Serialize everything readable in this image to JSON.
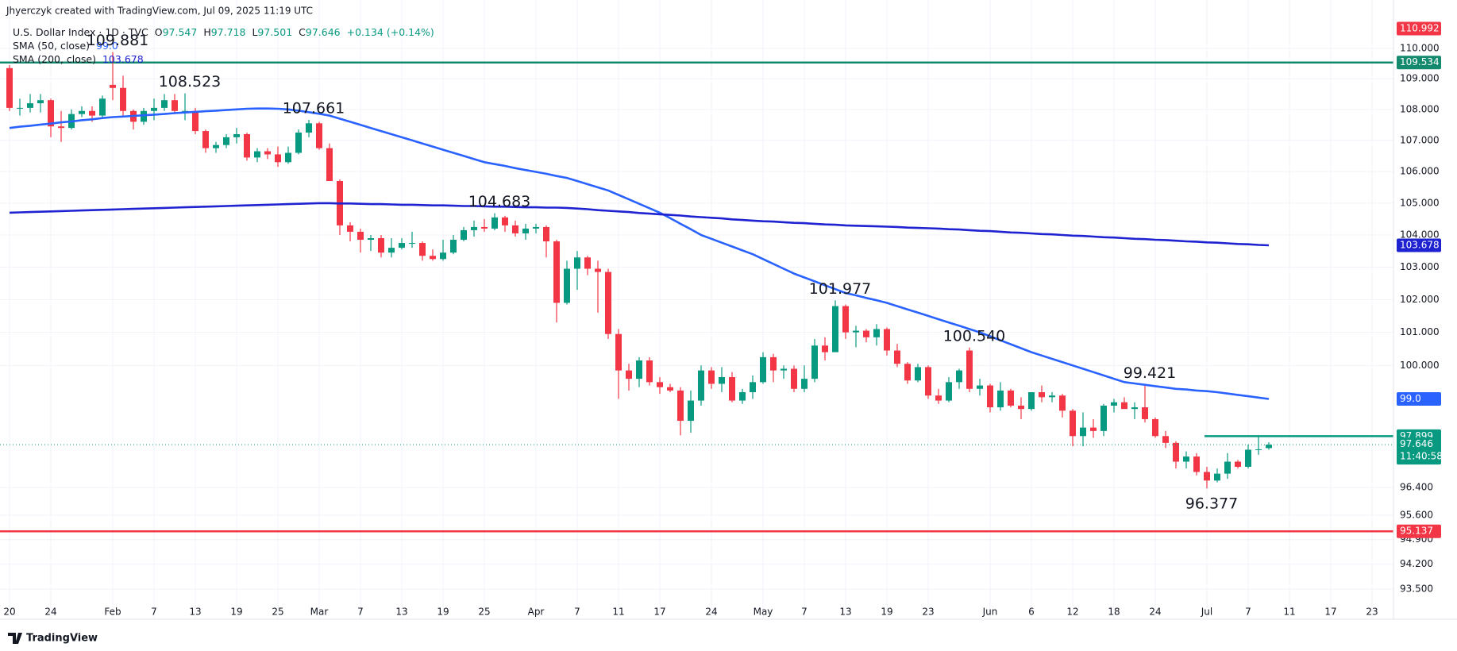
{
  "chart_data": {
    "type": "candlestick",
    "attribution": "Jhyerczyk created with TradingView.com, Jul 09, 2025 11:19 UTC",
    "title": "U.S. Dollar Index · 1D · TVC",
    "ohlc": [
      "O",
      "97.547",
      "H",
      "97.718",
      "L",
      "97.501",
      "C",
      "97.646",
      "+0.134 (+0.14%)"
    ],
    "footer": "TradingView",
    "log_scale": true,
    "grid": true,
    "up_color": "#089981",
    "down_color": "#f23645",
    "ylim": [
      93.21,
      111.0
    ],
    "yticks": [
      {
        "value": 110,
        "label": "110.000"
      },
      {
        "value": 109,
        "label": "109.000"
      },
      {
        "value": 108,
        "label": "108.000"
      },
      {
        "value": 107,
        "label": "107.000"
      },
      {
        "value": 106,
        "label": "106.000"
      },
      {
        "value": 105,
        "label": "105.000"
      },
      {
        "value": 104,
        "label": "104.000"
      },
      {
        "value": 103,
        "label": "103.000"
      },
      {
        "value": 102,
        "label": "102.000"
      },
      {
        "value": 101,
        "label": "101.000"
      },
      {
        "value": 100,
        "label": "100.000"
      },
      {
        "value": 96.4,
        "label": "96.400"
      },
      {
        "value": 95.6,
        "label": "95.600"
      },
      {
        "value": 94.9,
        "label": "94.900"
      },
      {
        "value": 94.2,
        "label": "94.200"
      },
      {
        "value": 93.5,
        "label": "93.500"
      }
    ],
    "categories": [
      "20",
      null,
      null,
      null,
      "24",
      null,
      null,
      null,
      null,
      null,
      "Feb",
      null,
      null,
      null,
      "7",
      null,
      null,
      null,
      "13",
      null,
      null,
      null,
      "19",
      null,
      null,
      null,
      "25",
      null,
      null,
      null,
      "Mar",
      null,
      null,
      null,
      "7",
      null,
      null,
      null,
      "13",
      null,
      null,
      null,
      "19",
      null,
      null,
      null,
      "25",
      null,
      null,
      null,
      null,
      "Apr",
      null,
      null,
      null,
      "7",
      null,
      null,
      null,
      "11",
      null,
      null,
      null,
      "17",
      null,
      null,
      null,
      null,
      "24",
      null,
      null,
      null,
      null,
      "May",
      null,
      null,
      null,
      "7",
      null,
      null,
      null,
      "13",
      null,
      null,
      null,
      "19",
      null,
      null,
      null,
      "23",
      null,
      null,
      null,
      null,
      null,
      "Jun",
      null,
      null,
      null,
      "6",
      null,
      null,
      null,
      "12",
      null,
      null,
      null,
      "18",
      null,
      null,
      null,
      "24",
      null,
      null,
      null,
      null,
      "Jul",
      null,
      null,
      null,
      "7",
      null,
      null,
      null,
      "11",
      null,
      null,
      null,
      "17",
      null,
      null,
      null,
      "23"
    ],
    "open": [
      109.35,
      108.05,
      108.05,
      108.2,
      108.3,
      107.45,
      107.4,
      107.85,
      107.95,
      107.8,
      108.8,
      108.7,
      107.95,
      107.6,
      107.95,
      108.05,
      108.3,
      107.95,
      107.95,
      107.3,
      106.75,
      106.85,
      107.1,
      107.2,
      106.45,
      106.65,
      106.55,
      106.3,
      106.6,
      107.25,
      107.55,
      106.75,
      105.7,
      104.3,
      104.1,
      103.85,
      103.9,
      103.45,
      103.6,
      103.75,
      103.75,
      103.35,
      103.25,
      103.45,
      103.85,
      104.15,
      104.25,
      104.2,
      104.55,
      104.3,
      104.05,
      104.2,
      104.25,
      103.8,
      101.9,
      102.95,
      103.3,
      102.95,
      102.85,
      100.95,
      99.85,
      99.6,
      100.15,
      99.5,
      99.35,
      99.25,
      98.35,
      98.95,
      99.85,
      99.45,
      99.65,
      98.95,
      99.2,
      99.5,
      100.25,
      99.85,
      99.9,
      99.3,
      99.6,
      100.6,
      100.4,
      101.8,
      101.0,
      101.05,
      100.85,
      101.1,
      100.45,
      100.05,
      99.55,
      99.95,
      99.1,
      98.95,
      99.5,
      100.45,
      99.3,
      99.4,
      98.75,
      99.25,
      98.8,
      98.7,
      99.2,
      99.05,
      99.1,
      98.65,
      97.9,
      98.15,
      98.05,
      98.8,
      98.9,
      98.7,
      98.75,
      98.4,
      97.9,
      97.7,
      97.15,
      97.3,
      96.85,
      96.6,
      96.8,
      97.15,
      97.0,
      97.5,
      97.547,
      null,
      null,
      null,
      null,
      null,
      null,
      null,
      null,
      null,
      null
    ],
    "high": [
      109.45,
      108.35,
      108.5,
      108.5,
      108.35,
      107.95,
      108.0,
      108.1,
      108.1,
      108.45,
      109.881,
      109.1,
      108.0,
      108.05,
      108.35,
      108.5,
      108.5,
      108.523,
      108.05,
      107.35,
      106.95,
      107.2,
      107.4,
      107.25,
      106.75,
      106.75,
      106.8,
      106.8,
      107.35,
      107.661,
      107.6,
      106.9,
      105.75,
      104.4,
      104.2,
      104.0,
      104.0,
      103.9,
      103.9,
      104.1,
      103.8,
      103.55,
      103.85,
      104.0,
      104.25,
      104.45,
      104.5,
      104.683,
      104.6,
      104.45,
      104.35,
      104.35,
      104.3,
      103.85,
      103.2,
      103.5,
      103.35,
      103.2,
      102.95,
      101.1,
      100.05,
      100.25,
      100.25,
      99.65,
      99.45,
      99.35,
      99.25,
      100.0,
      99.95,
      99.95,
      99.8,
      99.3,
      99.7,
      100.4,
      100.35,
      100.0,
      100.0,
      100.0,
      100.8,
      100.85,
      101.977,
      101.85,
      101.2,
      101.1,
      101.25,
      101.15,
      100.65,
      100.1,
      100.05,
      100.0,
      99.3,
      99.65,
      99.9,
      100.54,
      99.6,
      99.45,
      99.5,
      99.3,
      99.05,
      99.2,
      99.4,
      99.2,
      99.15,
      98.7,
      98.6,
      98.4,
      98.85,
      99.0,
      99.05,
      98.9,
      99.421,
      98.45,
      98.05,
      97.75,
      97.45,
      97.4,
      97.0,
      96.95,
      97.4,
      97.2,
      97.65,
      97.899,
      97.718,
      null,
      null,
      null,
      null,
      null,
      null,
      null,
      null,
      null,
      null
    ],
    "low": [
      107.95,
      107.8,
      107.9,
      107.9,
      107.1,
      106.95,
      107.35,
      107.75,
      107.6,
      107.75,
      108.3,
      107.75,
      107.35,
      107.5,
      107.65,
      107.95,
      107.9,
      107.65,
      107.2,
      106.6,
      106.6,
      106.75,
      106.9,
      106.35,
      106.3,
      106.4,
      106.15,
      106.25,
      106.55,
      107.1,
      106.7,
      105.7,
      104.0,
      103.8,
      103.45,
      103.5,
      103.3,
      103.3,
      103.55,
      103.6,
      103.2,
      103.2,
      103.2,
      103.4,
      103.8,
      103.95,
      104.1,
      104.15,
      104.1,
      103.95,
      103.85,
      104.05,
      103.3,
      101.3,
      101.85,
      102.3,
      102.75,
      101.6,
      100.8,
      99.0,
      99.25,
      99.35,
      99.4,
      99.15,
      99.2,
      97.92,
      98.0,
      98.8,
      99.3,
      99.2,
      98.9,
      98.85,
      99.0,
      99.45,
      99.5,
      99.6,
      99.2,
      99.2,
      99.5,
      100.15,
      100.4,
      100.8,
      100.55,
      100.7,
      100.6,
      100.3,
      99.95,
      99.45,
      99.5,
      99.0,
      98.85,
      98.9,
      99.3,
      99.2,
      99.1,
      98.6,
      98.65,
      98.75,
      98.4,
      98.65,
      98.9,
      98.9,
      98.45,
      97.6,
      97.6,
      97.85,
      97.9,
      98.6,
      98.7,
      98.4,
      98.3,
      97.85,
      97.55,
      96.95,
      96.95,
      96.75,
      96.377,
      96.55,
      96.65,
      96.95,
      96.95,
      97.35,
      97.501,
      null,
      null,
      null,
      null,
      null,
      null,
      null,
      null,
      null,
      null
    ],
    "close": [
      108.05,
      108.05,
      108.2,
      108.3,
      107.45,
      107.4,
      107.85,
      107.95,
      107.8,
      108.35,
      108.7,
      107.95,
      107.6,
      107.95,
      108.05,
      108.3,
      107.95,
      107.95,
      107.3,
      106.75,
      106.85,
      107.1,
      107.2,
      106.45,
      106.65,
      106.55,
      106.3,
      106.6,
      107.25,
      107.55,
      106.75,
      105.7,
      104.3,
      104.1,
      103.85,
      103.9,
      103.45,
      103.6,
      103.75,
      103.75,
      103.35,
      103.25,
      103.45,
      103.85,
      104.15,
      104.25,
      104.2,
      104.55,
      104.3,
      104.05,
      104.2,
      104.25,
      103.8,
      101.9,
      102.95,
      103.3,
      102.95,
      102.85,
      100.95,
      99.85,
      99.6,
      100.15,
      99.5,
      99.35,
      99.25,
      98.35,
      98.95,
      99.85,
      99.45,
      99.65,
      98.95,
      99.2,
      99.5,
      100.25,
      99.85,
      99.9,
      99.3,
      99.6,
      100.6,
      100.4,
      101.8,
      101.0,
      101.05,
      100.85,
      101.1,
      100.45,
      100.05,
      99.55,
      99.95,
      99.1,
      98.95,
      99.5,
      99.85,
      99.3,
      99.4,
      98.75,
      99.25,
      98.8,
      98.7,
      99.2,
      99.05,
      99.1,
      98.65,
      97.9,
      98.15,
      98.05,
      98.8,
      98.9,
      98.7,
      98.75,
      98.4,
      97.9,
      97.7,
      97.15,
      97.3,
      96.85,
      96.6,
      96.8,
      97.15,
      97.0,
      97.5,
      97.512,
      97.646,
      null,
      null,
      null,
      null,
      null,
      null,
      null,
      null,
      null,
      null
    ],
    "series": [
      {
        "name": "SMA (50, close)",
        "legend_value": "99.0",
        "color": "#2962ff",
        "values": [
          107.4,
          107.44,
          107.47,
          107.51,
          107.54,
          107.58,
          107.61,
          107.65,
          107.68,
          107.72,
          107.75,
          107.77,
          107.79,
          107.81,
          107.83,
          107.85,
          107.88,
          107.9,
          107.92,
          107.94,
          107.96,
          107.98,
          108.0,
          108.02,
          108.03,
          108.03,
          108.02,
          108.0,
          107.96,
          107.91,
          107.86,
          107.8,
          107.7,
          107.6,
          107.5,
          107.4,
          107.3,
          107.2,
          107.1,
          107.0,
          106.9,
          106.8,
          106.7,
          106.6,
          106.5,
          106.4,
          106.3,
          106.24,
          106.18,
          106.11,
          106.05,
          105.99,
          105.93,
          105.86,
          105.8,
          105.7,
          105.6,
          105.5,
          105.4,
          105.26,
          105.12,
          104.98,
          104.84,
          104.7,
          104.53,
          104.35,
          104.18,
          104.0,
          103.88,
          103.76,
          103.64,
          103.52,
          103.4,
          103.25,
          103.1,
          102.95,
          102.8,
          102.68,
          102.56,
          102.44,
          102.32,
          102.2,
          102.13,
          102.05,
          101.98,
          101.9,
          101.8,
          101.7,
          101.6,
          101.5,
          101.4,
          101.3,
          101.2,
          101.1,
          101.0,
          100.88,
          100.76,
          100.64,
          100.52,
          100.4,
          100.3,
          100.2,
          100.1,
          100.0,
          99.9,
          99.8,
          99.7,
          99.6,
          99.5,
          99.46,
          99.42,
          99.38,
          99.34,
          99.3,
          99.28,
          99.25,
          99.23,
          99.2,
          99.16,
          99.12,
          99.08,
          99.04,
          99.0,
          null,
          null,
          null,
          null,
          null,
          null,
          null,
          null,
          null,
          null
        ]
      },
      {
        "name": "SMA (200, close)",
        "legend_value": "103.678",
        "color": "#1e22d0",
        "values": [
          104.7,
          104.71,
          104.72,
          104.73,
          104.74,
          104.75,
          104.76,
          104.77,
          104.78,
          104.79,
          104.8,
          104.81,
          104.82,
          104.83,
          104.84,
          104.85,
          104.86,
          104.87,
          104.88,
          104.89,
          104.9,
          104.91,
          104.92,
          104.93,
          104.94,
          104.95,
          104.96,
          104.97,
          104.98,
          104.99,
          105.0,
          105.0,
          104.99,
          104.99,
          104.98,
          104.97,
          104.97,
          104.96,
          104.95,
          104.95,
          104.94,
          104.93,
          104.93,
          104.92,
          104.91,
          104.91,
          104.9,
          104.89,
          104.89,
          104.88,
          104.87,
          104.87,
          104.86,
          104.86,
          104.85,
          104.83,
          104.81,
          104.78,
          104.76,
          104.74,
          104.72,
          104.69,
          104.67,
          104.65,
          104.63,
          104.61,
          104.58,
          104.56,
          104.54,
          104.52,
          104.49,
          104.47,
          104.45,
          104.43,
          104.42,
          104.4,
          104.38,
          104.37,
          104.35,
          104.33,
          104.32,
          104.3,
          104.29,
          104.28,
          104.27,
          104.26,
          104.25,
          104.23,
          104.22,
          104.21,
          104.2,
          104.18,
          104.17,
          104.15,
          104.13,
          104.12,
          104.1,
          104.08,
          104.07,
          104.05,
          104.03,
          104.02,
          104.0,
          103.98,
          103.97,
          103.95,
          103.93,
          103.92,
          103.9,
          103.88,
          103.87,
          103.85,
          103.84,
          103.82,
          103.8,
          103.79,
          103.77,
          103.76,
          103.74,
          103.72,
          103.71,
          103.69,
          103.678,
          null,
          null,
          null,
          null,
          null,
          null,
          null,
          null,
          null,
          null
        ]
      }
    ],
    "annotations": [
      109.881,
      108.523,
      107.661,
      104.683,
      101.977,
      {
        "value": 100.54,
        "label": "100.540"
      },
      99.421,
      96.377
    ],
    "levels": [
      {
        "value": 109.534,
        "color": "#138a6e",
        "span": "full"
      },
      {
        "value": 95.137,
        "color": "#f23645",
        "span": "full"
      },
      {
        "value": 97.899,
        "color": "#089981",
        "span": "short"
      }
    ],
    "price_labels": [
      {
        "value": 110.992,
        "color": "#f23645"
      },
      {
        "value": 109.534,
        "color": "#138a6e"
      },
      {
        "value": 103.678,
        "color": "#1e22d0"
      },
      {
        "value": 99.0,
        "label": "99.0",
        "color": "#2962ff"
      },
      {
        "value": 97.899,
        "color": "#089981"
      },
      {
        "value": 97.646,
        "sublabel": "11:40:58",
        "color": "#089981"
      },
      {
        "value": 95.137,
        "color": "#f23645"
      }
    ]
  }
}
